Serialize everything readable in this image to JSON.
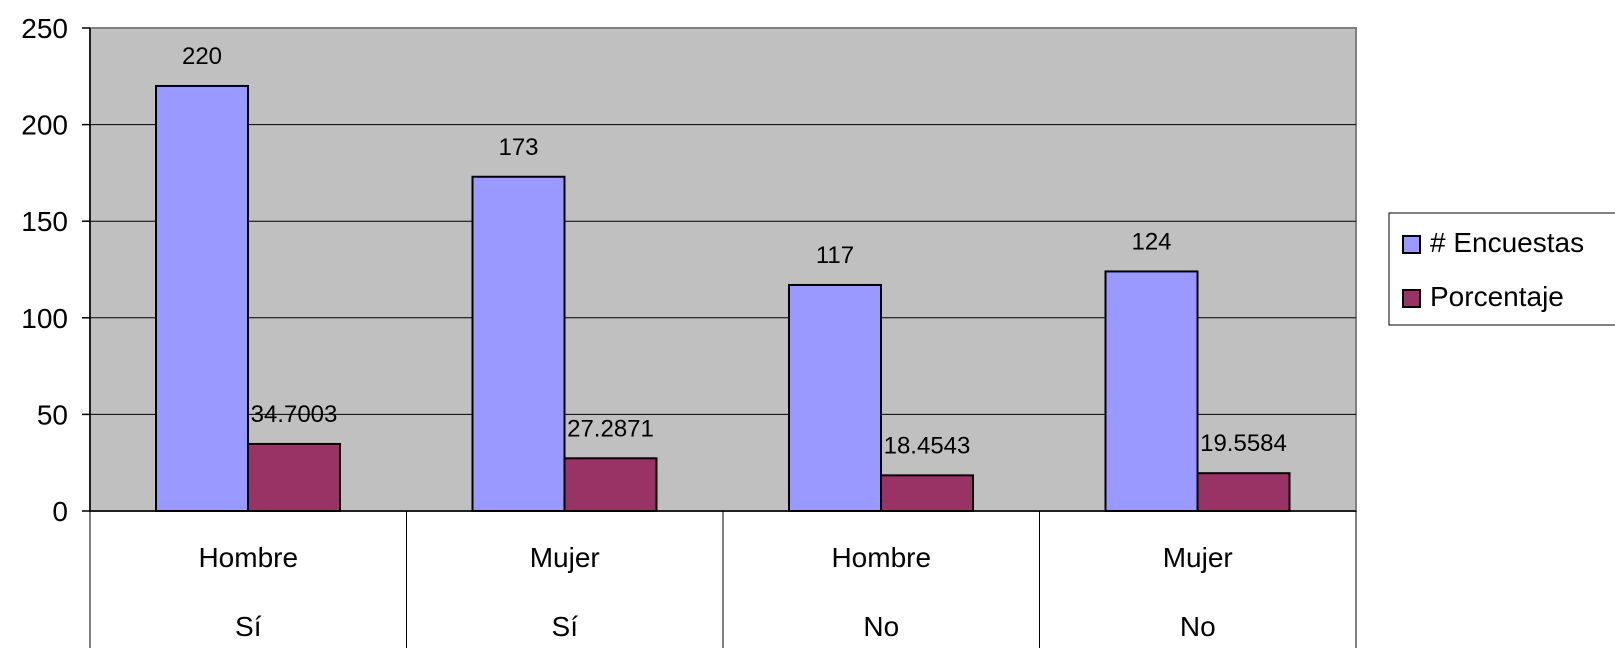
{
  "chart_data": {
    "type": "bar",
    "categories": [
      {
        "level1": "Hombre",
        "level2": "Sí"
      },
      {
        "level1": "Mujer",
        "level2": "Sí"
      },
      {
        "level1": "Hombre",
        "level2": "No"
      },
      {
        "level1": "Mujer",
        "level2": "No"
      }
    ],
    "series": [
      {
        "name": "# Encuestas",
        "color": "#9999ff",
        "values": [
          220,
          173,
          117,
          124
        ],
        "labels": [
          "220",
          "173",
          "117",
          "124"
        ]
      },
      {
        "name": "Porcentaje",
        "color": "#993366",
        "values": [
          34.7003,
          27.2871,
          18.4543,
          19.5584
        ],
        "labels": [
          "34.7003",
          "27.2871",
          "18.4543",
          "19.5584"
        ]
      }
    ],
    "ylim": [
      0,
      250
    ],
    "yticks": [
      0,
      50,
      100,
      150,
      200,
      250
    ],
    "grid": true,
    "plot_background": "#c0c0c0",
    "legend_position": "right",
    "title": "",
    "xlabel": "",
    "ylabel": ""
  }
}
